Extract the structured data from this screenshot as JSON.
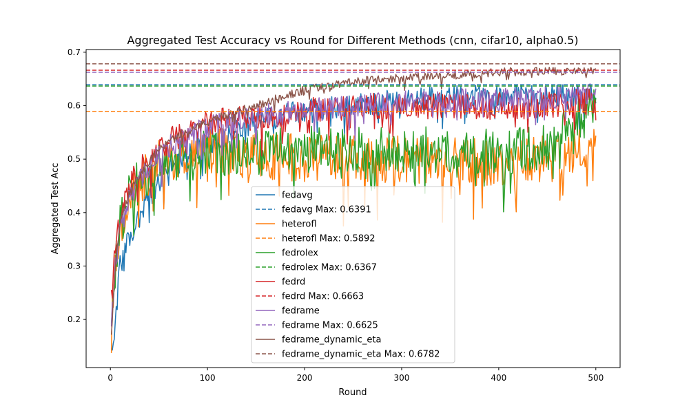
{
  "chart_data": {
    "type": "line",
    "title": "Aggregated Test Accuracy vs Round for Different Methods (cnn, cifar10, alpha0.5)",
    "xlabel": "Round",
    "ylabel": "Aggregated Test Acc",
    "xlim": [
      -25,
      525
    ],
    "ylim": [
      0.11,
      0.705
    ],
    "xticks": [
      0,
      100,
      200,
      300,
      400,
      500
    ],
    "yticks": [
      0.2,
      0.3,
      0.4,
      0.5,
      0.6,
      0.7
    ],
    "grid": false,
    "legend_position": "lower-center",
    "x": {
      "start": 1,
      "end": 500
    },
    "series": [
      {
        "name": "fedavg",
        "color": "#1f77b4",
        "points": [
          [
            1,
            0.14
          ],
          [
            5,
            0.2
          ],
          [
            10,
            0.3
          ],
          [
            20,
            0.36
          ],
          [
            30,
            0.39
          ],
          [
            40,
            0.43
          ],
          [
            50,
            0.46
          ],
          [
            60,
            0.48
          ],
          [
            75,
            0.5
          ],
          [
            100,
            0.53
          ],
          [
            125,
            0.55
          ],
          [
            150,
            0.57
          ],
          [
            200,
            0.59
          ],
          [
            250,
            0.6
          ],
          [
            300,
            0.61
          ],
          [
            350,
            0.615
          ],
          [
            400,
            0.62
          ],
          [
            450,
            0.62
          ],
          [
            500,
            0.62
          ]
        ],
        "noise": 0.022,
        "max": 0.6391,
        "max_label": "fedavg Max: 0.6391"
      },
      {
        "name": "heterofl",
        "color": "#ff7f0e",
        "points": [
          [
            1,
            0.18
          ],
          [
            5,
            0.3
          ],
          [
            10,
            0.38
          ],
          [
            20,
            0.43
          ],
          [
            30,
            0.46
          ],
          [
            50,
            0.5
          ],
          [
            75,
            0.51
          ],
          [
            100,
            0.52
          ],
          [
            150,
            0.51
          ],
          [
            200,
            0.5
          ],
          [
            250,
            0.5
          ],
          [
            300,
            0.5
          ],
          [
            350,
            0.5
          ],
          [
            400,
            0.49
          ],
          [
            450,
            0.5
          ],
          [
            500,
            0.53
          ]
        ],
        "noise": 0.045,
        "max": 0.5892,
        "max_label": "heterofl Max: 0.5892"
      },
      {
        "name": "fedrolex",
        "color": "#2ca02c",
        "points": [
          [
            1,
            0.2
          ],
          [
            5,
            0.3
          ],
          [
            10,
            0.38
          ],
          [
            20,
            0.43
          ],
          [
            30,
            0.46
          ],
          [
            50,
            0.49
          ],
          [
            75,
            0.5
          ],
          [
            100,
            0.51
          ],
          [
            150,
            0.51
          ],
          [
            200,
            0.52
          ],
          [
            250,
            0.52
          ],
          [
            300,
            0.52
          ],
          [
            350,
            0.52
          ],
          [
            400,
            0.51
          ],
          [
            450,
            0.52
          ],
          [
            500,
            0.6
          ]
        ],
        "noise": 0.045,
        "max": 0.6367,
        "max_label": "fedrolex Max: 0.6367"
      },
      {
        "name": "fedrd",
        "color": "#d62728",
        "points": [
          [
            1,
            0.24
          ],
          [
            5,
            0.33
          ],
          [
            10,
            0.4
          ],
          [
            20,
            0.45
          ],
          [
            30,
            0.48
          ],
          [
            50,
            0.52
          ],
          [
            75,
            0.55
          ],
          [
            100,
            0.57
          ],
          [
            150,
            0.58
          ],
          [
            200,
            0.59
          ],
          [
            250,
            0.6
          ],
          [
            300,
            0.6
          ],
          [
            350,
            0.6
          ],
          [
            400,
            0.6
          ],
          [
            450,
            0.6
          ],
          [
            500,
            0.61
          ]
        ],
        "noise": 0.025,
        "max": 0.6663,
        "max_label": "fedrd Max: 0.6663"
      },
      {
        "name": "fedrame",
        "color": "#9467bd",
        "points": [
          [
            1,
            0.2
          ],
          [
            5,
            0.3
          ],
          [
            10,
            0.37
          ],
          [
            20,
            0.43
          ],
          [
            30,
            0.46
          ],
          [
            50,
            0.51
          ],
          [
            75,
            0.54
          ],
          [
            100,
            0.56
          ],
          [
            150,
            0.58
          ],
          [
            200,
            0.59
          ],
          [
            250,
            0.6
          ],
          [
            300,
            0.605
          ],
          [
            350,
            0.61
          ],
          [
            400,
            0.61
          ],
          [
            450,
            0.615
          ],
          [
            500,
            0.62
          ]
        ],
        "noise": 0.022,
        "max": 0.6625,
        "max_label": "fedrame Max: 0.6625"
      },
      {
        "name": "fedrame_dynamic_eta",
        "color": "#8c564b",
        "points": [
          [
            1,
            0.17
          ],
          [
            5,
            0.3
          ],
          [
            10,
            0.38
          ],
          [
            20,
            0.44
          ],
          [
            30,
            0.47
          ],
          [
            50,
            0.52
          ],
          [
            75,
            0.55
          ],
          [
            100,
            0.57
          ],
          [
            150,
            0.6
          ],
          [
            200,
            0.63
          ],
          [
            250,
            0.645
          ],
          [
            300,
            0.652
          ],
          [
            350,
            0.657
          ],
          [
            400,
            0.663
          ],
          [
            450,
            0.665
          ],
          [
            500,
            0.665
          ]
        ],
        "noise": 0.008,
        "max": 0.6782,
        "max_label": "fedrame_dynamic_eta Max: 0.6782"
      }
    ]
  }
}
